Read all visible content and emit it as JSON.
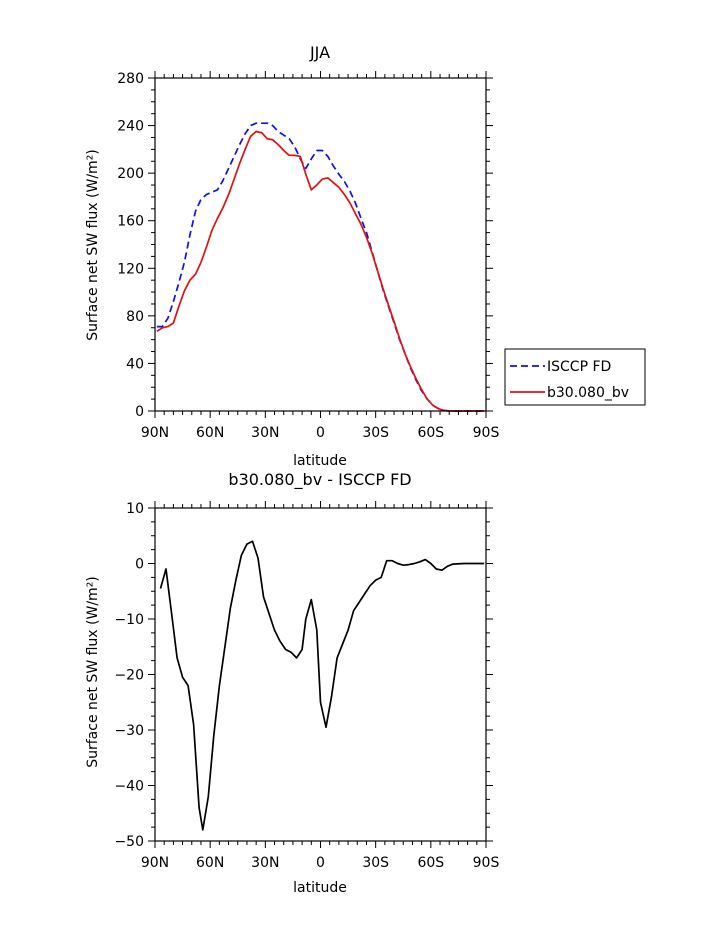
{
  "chart_data": [
    {
      "type": "line",
      "title": "JJA",
      "xlabel": "latitude",
      "ylabel": "Surface net SW flux (W/m²)",
      "xlim": [
        90,
        -90
      ],
      "ylim": [
        0,
        280
      ],
      "x_ticks": [
        90,
        60,
        30,
        0,
        -30,
        -60,
        -90
      ],
      "x_tick_labels": [
        "90N",
        "60N",
        "30N",
        "0",
        "30S",
        "60S",
        "90S"
      ],
      "y_ticks": [
        0,
        40,
        80,
        120,
        160,
        200,
        240,
        280
      ],
      "y_tick_labels": [
        "0",
        "40",
        "80",
        "120",
        "160",
        "200",
        "240",
        "280"
      ],
      "grid": false,
      "legend_position": "right",
      "series": [
        {
          "name": "ISCCP FD",
          "color": "#1010e0",
          "style": "dashed",
          "points": [
            [
              89,
              71
            ],
            [
              86,
              71
            ],
            [
              83,
              78
            ],
            [
              80,
              92
            ],
            [
              77,
              108
            ],
            [
              74,
              125
            ],
            [
              71,
              148
            ],
            [
              68,
              168
            ],
            [
              65,
              178
            ],
            [
              62,
              182
            ],
            [
              59,
              184
            ],
            [
              56,
              186
            ],
            [
              53,
              194
            ],
            [
              50,
              204
            ],
            [
              47,
              214
            ],
            [
              44,
              224
            ],
            [
              41,
              233
            ],
            [
              38,
              240
            ],
            [
              35,
              242
            ],
            [
              32,
              242
            ],
            [
              29,
              242
            ],
            [
              26,
              240
            ],
            [
              23,
              235
            ],
            [
              20,
              232
            ],
            [
              17,
              229
            ],
            [
              14,
              222
            ],
            [
              11,
              212
            ],
            [
              8,
              204
            ],
            [
              5,
              212
            ],
            [
              2,
              219
            ],
            [
              -1,
              219
            ],
            [
              -4,
              214
            ],
            [
              -7,
              206
            ],
            [
              -10,
              199
            ],
            [
              -13,
              193
            ],
            [
              -16,
              185
            ],
            [
              -19,
              175
            ],
            [
              -22,
              162
            ],
            [
              -25,
              150
            ],
            [
              -28,
              134
            ],
            [
              -31,
              118
            ],
            [
              -34,
              102
            ],
            [
              -37,
              88
            ],
            [
              -40,
              74
            ],
            [
              -43,
              60
            ],
            [
              -46,
              48
            ],
            [
              -49,
              36
            ],
            [
              -52,
              26
            ],
            [
              -55,
              17
            ],
            [
              -58,
              10
            ],
            [
              -61,
              5
            ],
            [
              -64,
              2
            ],
            [
              -67,
              0.5
            ],
            [
              -70,
              0
            ],
            [
              -75,
              0
            ],
            [
              -80,
              0
            ],
            [
              -85,
              0
            ],
            [
              -89,
              0
            ]
          ]
        },
        {
          "name": "b30.080_bv",
          "color": "#e01010",
          "style": "solid",
          "points": [
            [
              89,
              67
            ],
            [
              86,
              70
            ],
            [
              83,
              71
            ],
            [
              80,
              74
            ],
            [
              77,
              88
            ],
            [
              74,
              101
            ],
            [
              71,
              110
            ],
            [
              68,
              115
            ],
            [
              65,
              125
            ],
            [
              62,
              138
            ],
            [
              59,
              152
            ],
            [
              56,
              162
            ],
            [
              53,
              171
            ],
            [
              50,
              182
            ],
            [
              47,
              195
            ],
            [
              44,
              208
            ],
            [
              41,
              220
            ],
            [
              38,
              231
            ],
            [
              35,
              235
            ],
            [
              32,
              234
            ],
            [
              29,
              229
            ],
            [
              26,
              228
            ],
            [
              23,
              224
            ],
            [
              20,
              219
            ],
            [
              17,
              215
            ],
            [
              14,
              215
            ],
            [
              11,
              214
            ],
            [
              8,
              199
            ],
            [
              5,
              186
            ],
            [
              2,
              190
            ],
            [
              -1,
              195
            ],
            [
              -4,
              196
            ],
            [
              -7,
              192
            ],
            [
              -10,
              188
            ],
            [
              -13,
              182
            ],
            [
              -16,
              175
            ],
            [
              -19,
              166
            ],
            [
              -22,
              157
            ],
            [
              -25,
              146
            ],
            [
              -28,
              133
            ],
            [
              -31,
              118
            ],
            [
              -34,
              103
            ],
            [
              -37,
              89
            ],
            [
              -40,
              75
            ],
            [
              -43,
              61
            ],
            [
              -46,
              48
            ],
            [
              -49,
              37
            ],
            [
              -52,
              27
            ],
            [
              -55,
              18
            ],
            [
              -58,
              10
            ],
            [
              -61,
              5
            ],
            [
              -64,
              2
            ],
            [
              -67,
              0.5
            ],
            [
              -70,
              0
            ],
            [
              -75,
              0
            ],
            [
              -80,
              0
            ],
            [
              -85,
              0
            ],
            [
              -89,
              0
            ]
          ]
        }
      ]
    },
    {
      "type": "line",
      "title": "b30.080_bv - ISCCP FD",
      "xlabel": "latitude",
      "ylabel": "Surface net SW flux (W/m²)",
      "xlim": [
        90,
        -90
      ],
      "ylim": [
        -50,
        10
      ],
      "x_ticks": [
        90,
        60,
        30,
        0,
        -30,
        -60,
        -90
      ],
      "x_tick_labels": [
        "90N",
        "60N",
        "30N",
        "0",
        "30S",
        "60S",
        "90S"
      ],
      "y_ticks": [
        -50,
        -40,
        -30,
        -20,
        -10,
        0,
        10
      ],
      "y_tick_labels": [
        "−50",
        "−40",
        "−30",
        "−20",
        "−10",
        "0",
        "10"
      ],
      "grid": false,
      "series": [
        {
          "color": "#000000",
          "style": "solid",
          "points": [
            [
              87,
              -4.5
            ],
            [
              84,
              -1
            ],
            [
              81,
              -9
            ],
            [
              78,
              -17
            ],
            [
              75,
              -20.5
            ],
            [
              72,
              -22
            ],
            [
              69,
              -29
            ],
            [
              66,
              -44
            ],
            [
              64,
              -48
            ],
            [
              61,
              -42
            ],
            [
              58,
              -31
            ],
            [
              55,
              -22
            ],
            [
              52,
              -15
            ],
            [
              49,
              -8
            ],
            [
              46,
              -3
            ],
            [
              43,
              1.5
            ],
            [
              40,
              3.5
            ],
            [
              37,
              4
            ],
            [
              34,
              1
            ],
            [
              31,
              -6
            ],
            [
              28,
              -9
            ],
            [
              25,
              -12
            ],
            [
              22,
              -14
            ],
            [
              19,
              -15.5
            ],
            [
              16,
              -16
            ],
            [
              13,
              -17
            ],
            [
              10,
              -15.5
            ],
            [
              8,
              -10
            ],
            [
              5,
              -6.5
            ],
            [
              2,
              -12
            ],
            [
              0,
              -25
            ],
            [
              -3,
              -29.5
            ],
            [
              -6,
              -24
            ],
            [
              -9,
              -17
            ],
            [
              -12,
              -14.5
            ],
            [
              -15,
              -12
            ],
            [
              -18,
              -8.5
            ],
            [
              -21,
              -7
            ],
            [
              -24,
              -5.5
            ],
            [
              -27,
              -4
            ],
            [
              -30,
              -3
            ],
            [
              -33,
              -2.5
            ],
            [
              -36,
              0.5
            ],
            [
              -39,
              0.5
            ],
            [
              -42,
              0
            ],
            [
              -45,
              -0.3
            ],
            [
              -48,
              -0.2
            ],
            [
              -51,
              0
            ],
            [
              -54,
              0.3
            ],
            [
              -57,
              0.7
            ],
            [
              -60,
              0
            ],
            [
              -63,
              -1
            ],
            [
              -66,
              -1.2
            ],
            [
              -69,
              -0.5
            ],
            [
              -72,
              -0.1
            ],
            [
              -78,
              0
            ],
            [
              -84,
              0
            ],
            [
              -89,
              0
            ]
          ]
        }
      ]
    }
  ]
}
